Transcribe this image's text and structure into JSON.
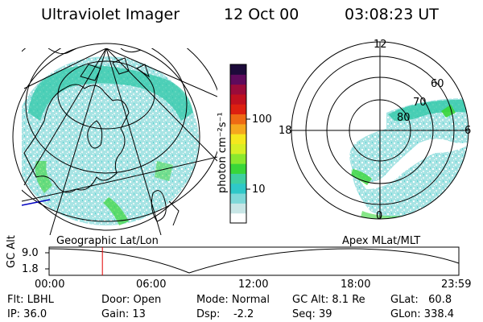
{
  "header": {
    "instrument": "Ultraviolet Imager",
    "date": "12 Oct 00",
    "time": "03:08:23 UT"
  },
  "colorbar": {
    "unit_label": "photon cm⁻²s⁻¹",
    "tick_100": "100",
    "tick_10": "10",
    "colors": [
      "#ffffff",
      "#c8e6e6",
      "#7fd8d8",
      "#2fc8c8",
      "#3fcfa0",
      "#39d639",
      "#8ae82e",
      "#d7ef25",
      "#f5e81e",
      "#f5a81e",
      "#ee6a14",
      "#dd2010",
      "#c0101f",
      "#9a0b3a",
      "#5e0a5c",
      "#1c0a3a"
    ]
  },
  "left_map": {
    "label": "Geographic Lat/Lon"
  },
  "right_polar": {
    "label": "Apex MLat/MLT",
    "mlt_top": "12",
    "mlt_left": "18",
    "mlt_right": "6",
    "mlt_bottom": "0",
    "lat_60": "60",
    "lat_70": "70",
    "lat_80": "80"
  },
  "timeline": {
    "axis_label": "GC Alt",
    "y_top": "9.0",
    "y_bottom": "1.8",
    "ticks": [
      "00:00",
      "06:00",
      "12:00",
      "18:00",
      "23:59"
    ],
    "marker_time_fraction": 0.13
  },
  "info": {
    "flt": "Flt: LBHL",
    "ip": "IP: 36.0",
    "door": "Door: Open",
    "gain": "Gain: 13",
    "mode": "Mode: Normal",
    "dsp": "Dsp:    -2.2",
    "gcalt": "GC Alt: 8.1 Re",
    "seq": "Seq: 39",
    "glat": "GLat:   60.8",
    "glon": "GLon: 338.4"
  }
}
